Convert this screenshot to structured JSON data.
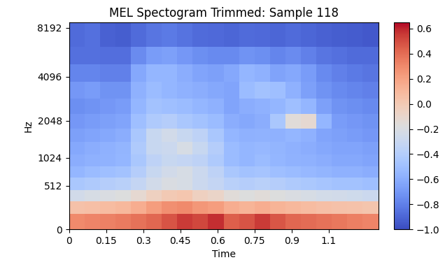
{
  "chart_data": {
    "type": "heatmap",
    "title": "MEL Spectogram Trimmed: Sample 118",
    "x_label": "Time",
    "y_label": "Hz",
    "log": "mel",
    "color": "coolwarm",
    "x": [
      0,
      0.0625,
      0.125,
      0.1875,
      0.25,
      0.3125,
      0.375,
      0.4375,
      0.5,
      0.5625,
      0.625,
      0.6875,
      0.75,
      0.8125,
      0.875,
      0.9375,
      1.0,
      1.0625,
      1.125,
      1.1875,
      1.25
    ],
    "y": [
      0,
      150,
      300,
      450,
      640,
      850,
      1100,
      1400,
      1800,
      2300,
      2950,
      3800,
      4900,
      6300,
      8800
    ],
    "xlim": [
      0,
      1.25
    ],
    "ylim": [
      0,
      8800
    ],
    "xticks": [
      0,
      0.15,
      0.3,
      0.45,
      0.6,
      0.75,
      0.9,
      {
        "value": 1.05,
        "label": "1.1"
      }
    ],
    "yticks": [
      0,
      512,
      1024,
      2048,
      4096,
      8192
    ],
    "cells": [
      [
        0.3,
        0.32,
        0.33,
        0.35,
        0.38,
        0.42,
        0.48,
        0.55,
        0.52,
        0.58,
        0.45,
        0.48,
        0.55,
        0.47,
        0.42,
        0.4,
        0.38,
        0.36,
        0.34,
        0.32
      ],
      [
        0.05,
        0.06,
        0.08,
        0.1,
        0.15,
        0.22,
        0.28,
        0.3,
        0.25,
        0.22,
        0.15,
        0.12,
        0.15,
        0.12,
        0.1,
        0.08,
        0.06,
        0.05,
        0.04,
        0.03
      ],
      [
        -0.25,
        -0.22,
        -0.2,
        -0.18,
        -0.12,
        -0.05,
        0.0,
        0.02,
        -0.05,
        -0.08,
        -0.15,
        -0.18,
        -0.15,
        -0.18,
        -0.2,
        -0.22,
        -0.24,
        -0.25,
        -0.26,
        -0.28
      ],
      [
        -0.45,
        -0.42,
        -0.4,
        -0.38,
        -0.32,
        -0.25,
        -0.2,
        -0.22,
        -0.28,
        -0.32,
        -0.38,
        -0.4,
        -0.38,
        -0.4,
        -0.42,
        -0.44,
        -0.46,
        -0.48,
        -0.48,
        -0.5
      ],
      [
        -0.55,
        -0.52,
        -0.5,
        -0.48,
        -0.4,
        -0.3,
        -0.25,
        -0.22,
        -0.28,
        -0.35,
        -0.45,
        -0.48,
        -0.47,
        -0.5,
        -0.52,
        -0.54,
        -0.56,
        -0.58,
        -0.58,
        -0.6
      ],
      [
        -0.6,
        -0.58,
        -0.57,
        -0.55,
        -0.45,
        -0.35,
        -0.3,
        -0.32,
        -0.35,
        -0.42,
        -0.52,
        -0.55,
        -0.52,
        -0.55,
        -0.57,
        -0.58,
        -0.6,
        -0.62,
        -0.62,
        -0.64
      ],
      [
        -0.62,
        -0.6,
        -0.58,
        -0.56,
        -0.42,
        -0.3,
        -0.28,
        -0.22,
        -0.3,
        -0.4,
        -0.52,
        -0.55,
        -0.54,
        -0.56,
        -0.58,
        -0.6,
        -0.62,
        -0.64,
        -0.64,
        -0.66
      ],
      [
        -0.66,
        -0.64,
        -0.62,
        -0.6,
        -0.45,
        -0.3,
        -0.25,
        -0.3,
        -0.35,
        -0.45,
        -0.55,
        -0.58,
        -0.57,
        -0.58,
        -0.55,
        -0.58,
        -0.64,
        -0.66,
        -0.68,
        -0.7
      ],
      [
        -0.7,
        -0.68,
        -0.66,
        -0.64,
        -0.5,
        -0.42,
        -0.4,
        -0.45,
        -0.48,
        -0.52,
        -0.6,
        -0.62,
        -0.6,
        -0.45,
        -0.15,
        -0.12,
        -0.55,
        -0.68,
        -0.7,
        -0.72
      ],
      [
        -0.74,
        -0.72,
        -0.7,
        -0.68,
        -0.55,
        -0.48,
        -0.5,
        -0.52,
        -0.55,
        -0.58,
        -0.64,
        -0.6,
        -0.58,
        -0.55,
        -0.5,
        -0.55,
        -0.66,
        -0.72,
        -0.74,
        -0.76
      ],
      [
        -0.7,
        -0.68,
        -0.72,
        -0.72,
        -0.58,
        -0.52,
        -0.55,
        -0.58,
        -0.6,
        -0.62,
        -0.64,
        -0.52,
        -0.48,
        -0.5,
        -0.58,
        -0.66,
        -0.72,
        -0.76,
        -0.78,
        -0.8
      ],
      [
        -0.78,
        -0.78,
        -0.8,
        -0.8,
        -0.62,
        -0.55,
        -0.55,
        -0.6,
        -0.64,
        -0.66,
        -0.62,
        -0.55,
        -0.58,
        -0.65,
        -0.62,
        -0.68,
        -0.76,
        -0.8,
        -0.82,
        -0.84
      ],
      [
        -0.86,
        -0.86,
        -0.87,
        -0.87,
        -0.75,
        -0.68,
        -0.66,
        -0.7,
        -0.74,
        -0.76,
        -0.76,
        -0.72,
        -0.74,
        -0.78,
        -0.75,
        -0.8,
        -0.84,
        -0.86,
        -0.88,
        -0.88
      ],
      [
        -0.88,
        -0.86,
        -0.92,
        -0.93,
        -0.88,
        -0.84,
        -0.82,
        -0.85,
        -0.88,
        -0.89,
        -0.9,
        -0.88,
        -0.89,
        -0.9,
        -0.88,
        -0.9,
        -0.92,
        -0.93,
        -0.94,
        -0.95
      ]
    ],
    "colorbar": {
      "range": [
        -1.0,
        0.65
      ],
      "ticks": [
        {
          "value": -1.0,
          "label": "−1.0"
        },
        {
          "value": -0.8,
          "label": "−0.8"
        },
        {
          "value": -0.6,
          "label": "−0.6"
        },
        {
          "value": -0.4,
          "label": "−0.4"
        },
        {
          "value": -0.2,
          "label": "−0.2"
        },
        {
          "value": 0.0,
          "label": "0.0"
        },
        0.2,
        0.4,
        0.6
      ]
    }
  }
}
